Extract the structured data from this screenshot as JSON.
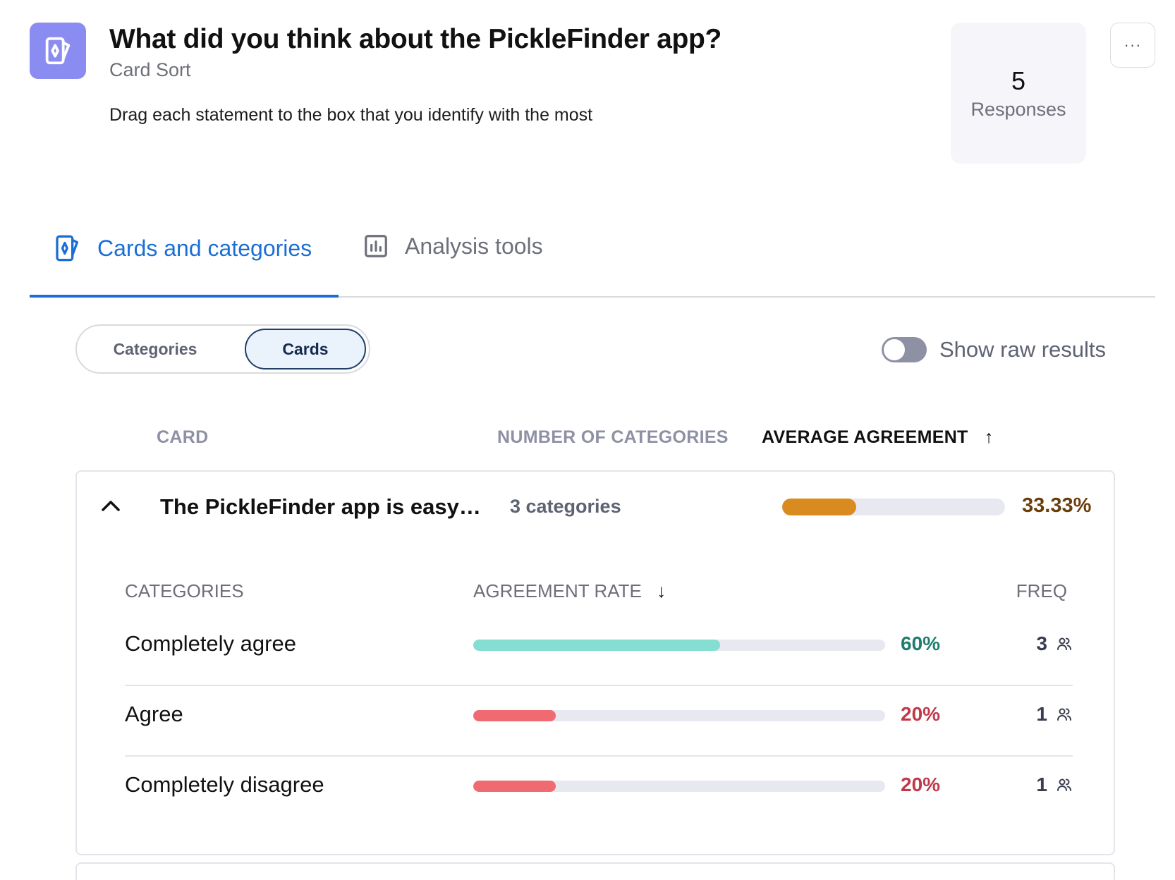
{
  "header": {
    "app_icon": "card-sort-icon",
    "title": "What did you think about the PickleFinder app?",
    "subtitle": "Card Sort",
    "instruction": "Drag each statement to the box that you identify with the most",
    "responses_count": "5",
    "responses_label": "Responses",
    "more_icon": "more-horizontal-icon",
    "more_label": "···"
  },
  "tabs": [
    {
      "label": "Cards and categories",
      "icon": "card-icon",
      "active": true
    },
    {
      "label": "Analysis tools",
      "icon": "bar-chart-icon",
      "active": false
    }
  ],
  "view_toggle": {
    "options": [
      "Categories",
      "Cards"
    ],
    "selected": "Cards"
  },
  "raw_results": {
    "label": "Show raw results",
    "enabled": false
  },
  "columns": {
    "card": "CARD",
    "num_categories": "NUMBER OF CATEGORIES",
    "avg_agreement": "AVERAGE AGREEMENT",
    "sort_icon": "arrow-up-icon",
    "sort_arrow": "↑"
  },
  "card": {
    "title": "The PickleFinder app is easy t...",
    "categories_text": "3 categories",
    "avg_agreement_value": 33.33,
    "avg_agreement_text": "33.33%",
    "avg_color": "#d98b1f",
    "avg_text_color": "#6b3f0b",
    "expanded": true,
    "sub_columns": {
      "categories": "CATEGORIES",
      "agreement_rate": "AGREEMENT RATE",
      "agreement_sort_arrow": "↓",
      "freq": "FREQ"
    },
    "rows": [
      {
        "name": "Completely agree",
        "rate": 60,
        "rate_text": "60%",
        "freq": "3",
        "color": "#86ddd1",
        "text_color": "#1f7d6e"
      },
      {
        "name": "Agree",
        "rate": 20,
        "rate_text": "20%",
        "freq": "1",
        "color": "#f06a72",
        "text_color": "#c0394a"
      },
      {
        "name": "Completely disagree",
        "rate": 20,
        "rate_text": "20%",
        "freq": "1",
        "color": "#f06a72",
        "text_color": "#c0394a"
      }
    ]
  },
  "colors": {
    "accent": "#1a6fd6",
    "app_icon_bg": "#8b8cf1",
    "muted": "#8e90a4"
  }
}
